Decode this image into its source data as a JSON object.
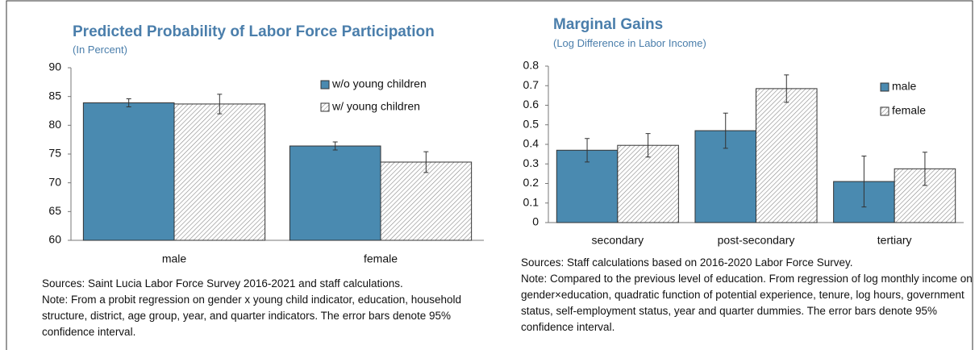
{
  "chart_data": [
    {
      "type": "bar",
      "title": "Predicted Probability of Labor Force Participation",
      "subtitle": "(In Percent)",
      "categories": [
        "male",
        "female"
      ],
      "series": [
        {
          "name": "w/o young children",
          "color": "#4a8ab0",
          "values": [
            83.9,
            76.4
          ],
          "errors": [
            0.7,
            0.7
          ]
        },
        {
          "name": "w/ young children",
          "color": "#ffffff",
          "pattern": "hatch",
          "values": [
            83.7,
            73.6
          ],
          "errors": [
            1.7,
            1.8
          ]
        }
      ],
      "ylim": [
        60,
        90
      ],
      "yticks": [
        60,
        65,
        70,
        75,
        80,
        85,
        90
      ],
      "legend": "upper right",
      "sources": "Sources: Saint Lucia Labor Force Survey 2016-2021 and staff calculations.",
      "note": "Note: From a probit regression on gender x young child indicator, education, household structure, district, age group, year, and quarter indicators. The error bars denote 95% confidence interval."
    },
    {
      "type": "bar",
      "title": "Marginal Gains",
      "subtitle": "(Log Difference in Labor Income)",
      "categories": [
        "secondary",
        "post-secondary",
        "tertiary"
      ],
      "series": [
        {
          "name": "male",
          "color": "#4a8ab0",
          "values": [
            0.37,
            0.47,
            0.21
          ],
          "errors": [
            0.06,
            0.09,
            0.13
          ]
        },
        {
          "name": "female",
          "color": "#ffffff",
          "pattern": "hatch",
          "values": [
            0.395,
            0.685,
            0.275
          ],
          "errors": [
            0.06,
            0.07,
            0.085
          ]
        }
      ],
      "ylim": [
        0,
        0.8
      ],
      "yticks": [
        0,
        0.1,
        0.2,
        0.3,
        0.4,
        0.5,
        0.6,
        0.7,
        0.8
      ],
      "legend": "upper right",
      "sources": "Sources: Staff calculations based on 2016-2020 Labor Force Survey.",
      "note": "Note: Compared to the previous level of education. From regression of log monthly income on gender×education, quadratic function of potential experience, tenure, log hours, government status, self-employment status, year and quarter dummies. The error bars denote 95% confidence interval."
    }
  ]
}
